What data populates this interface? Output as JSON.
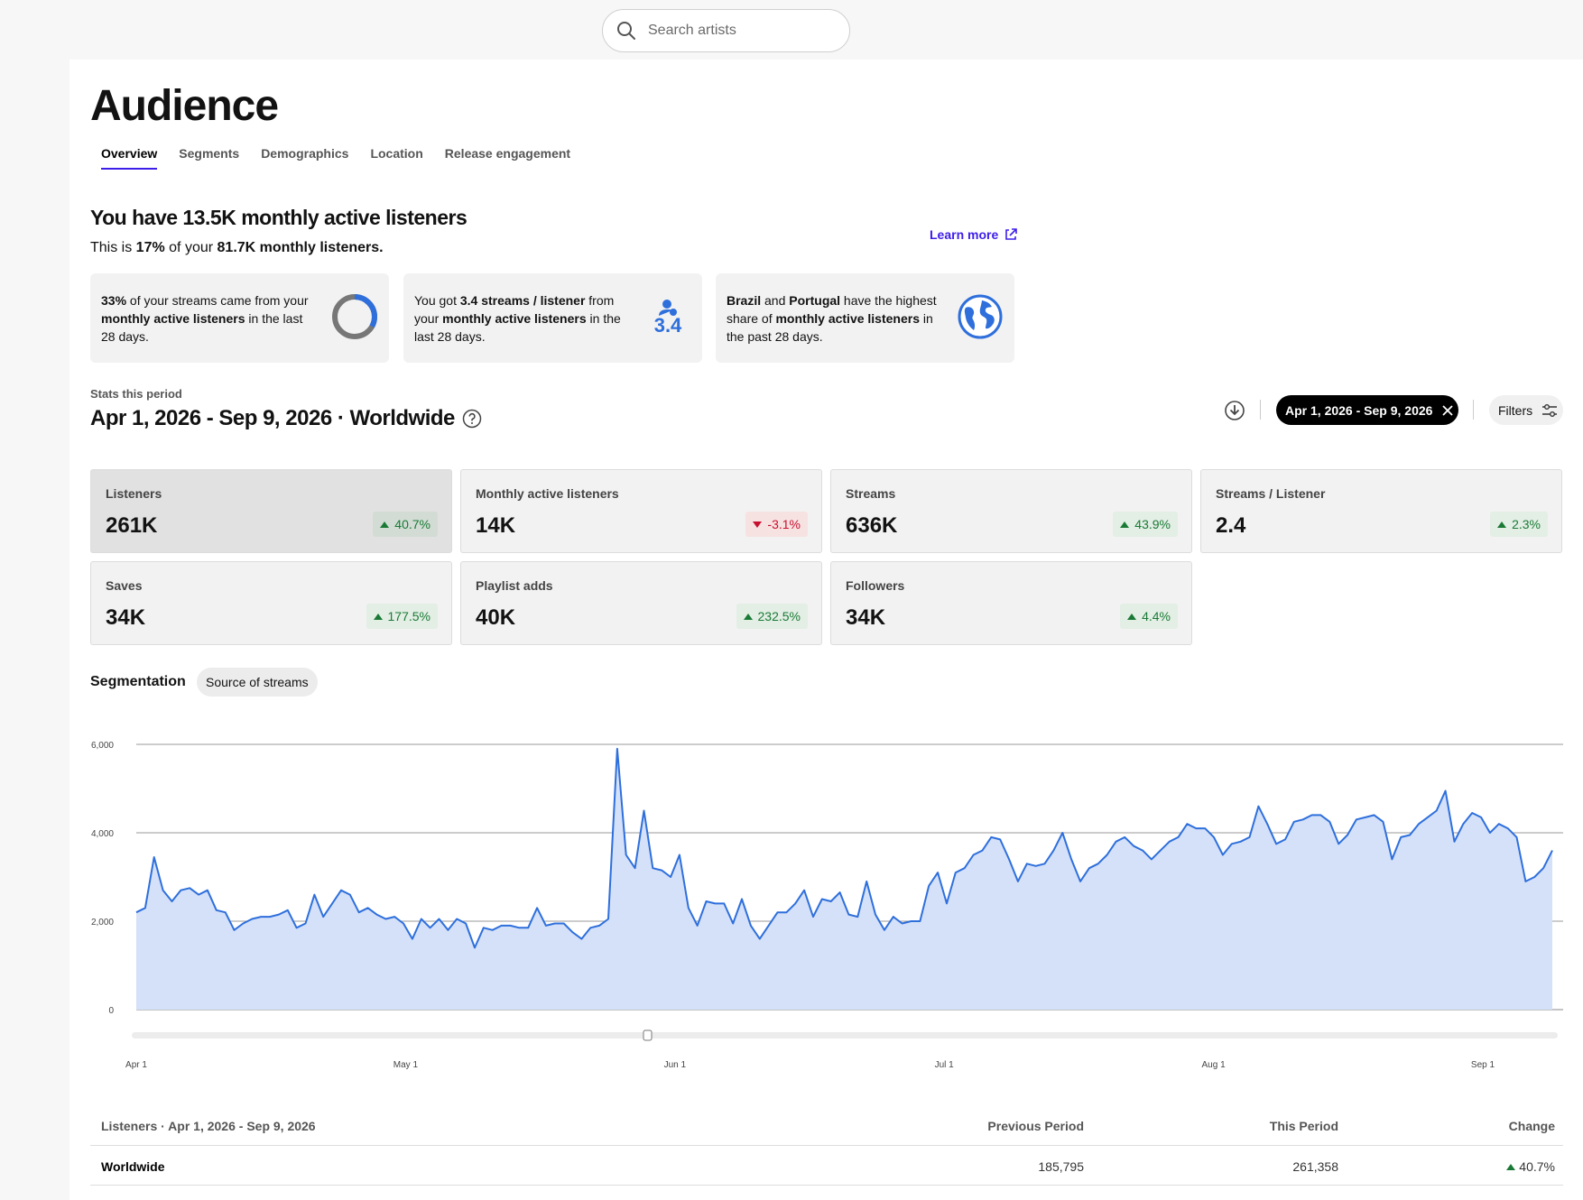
{
  "search": {
    "placeholder": "Search artists",
    "icon": "search-icon"
  },
  "page": {
    "title": "Audience"
  },
  "tabs": [
    {
      "label": "Overview",
      "active": true
    },
    {
      "label": "Segments"
    },
    {
      "label": "Demographics"
    },
    {
      "label": "Location"
    },
    {
      "label": "Release engagement"
    }
  ],
  "summary": {
    "headline": "You have 13.5K monthly active listeners",
    "sub_prefix": "This is ",
    "sub_pct": "17%",
    "sub_mid": " of your ",
    "sub_total": "81.7K monthly listeners.",
    "learn_more": "Learn more"
  },
  "insights": [
    {
      "b1": "33%",
      "t1": " of your streams came from your ",
      "b2": "monthly active listeners",
      "t2": " in the last 28 days.",
      "icon": "donut-chart-icon",
      "donut_pct": 33
    },
    {
      "t0": "You got ",
      "b1": "3.4 streams / listener",
      "t1": " from your ",
      "b2": "monthly active listeners",
      "t2": " in the last 28 days.",
      "icon": "listener-icon",
      "value": "3.4"
    },
    {
      "b1": "Brazil",
      "t1": " and ",
      "b2": "Portugal",
      "t2": " have the highest share of ",
      "b3": "monthly active listeners",
      "t3": " in the past 28 days.",
      "icon": "globe-icon"
    }
  ],
  "period": {
    "label": "Stats this period",
    "title": "Apr 1, 2026 - Sep 9, 2026 · Worldwide",
    "date_chip": "Apr 1, 2026 - Sep 9, 2026",
    "filters": "Filters"
  },
  "metrics": [
    {
      "label": "Listeners",
      "value": "261K",
      "change": "40.7%",
      "dir": "up",
      "selected": true
    },
    {
      "label": "Monthly active listeners",
      "value": "14K",
      "change": "-3.1%",
      "dir": "down"
    },
    {
      "label": "Streams",
      "value": "636K",
      "change": "43.9%",
      "dir": "up"
    },
    {
      "label": "Streams / Listener",
      "value": "2.4",
      "change": "2.3%",
      "dir": "up"
    },
    {
      "label": "Saves",
      "value": "34K",
      "change": "177.5%",
      "dir": "up"
    },
    {
      "label": "Playlist adds",
      "value": "40K",
      "change": "232.5%",
      "dir": "up"
    },
    {
      "label": "Followers",
      "value": "34K",
      "change": "4.4%",
      "dir": "up"
    }
  ],
  "segmentation": {
    "label": "Segmentation",
    "chip": "Source of streams"
  },
  "colors": {
    "accent": "#3d1ee8",
    "line": "#2e6fdc",
    "fill": "#d5e1f8",
    "up": "#1a7a35",
    "down": "#c8102e"
  },
  "chart_data": {
    "type": "area",
    "series": [
      {
        "values": [
          2200,
          2300,
          3450,
          2700,
          2450,
          2700,
          2750,
          2600,
          2700,
          2250,
          2200,
          1800,
          1950,
          2050,
          2100,
          2100,
          2150,
          2250,
          1850,
          1950,
          2600,
          2100,
          2400,
          2700,
          2600,
          2200,
          2300,
          2150,
          2050,
          2100,
          1950,
          1600,
          2050,
          1850,
          2050,
          1800,
          2050,
          1950,
          1400,
          1850,
          1800,
          1900,
          1900,
          1850,
          1850,
          2300,
          1900,
          1950,
          1950,
          1750,
          1600,
          1850,
          1900,
          2050,
          5900,
          3500,
          3200,
          4500,
          3200,
          3150,
          3000,
          3500,
          2300,
          1900,
          2450,
          2400,
          2400,
          1950,
          2500,
          1900,
          1600,
          1900,
          2200,
          2200,
          2400,
          2700,
          2100,
          2500,
          2450,
          2650,
          2150,
          2100,
          2900,
          2150,
          1800,
          2100,
          1950,
          2000,
          2000,
          2800,
          3100,
          2400,
          3100,
          3200,
          3500,
          3600,
          3900,
          3850,
          3400,
          2900,
          3300,
          3250,
          3300,
          3600,
          4000,
          3400,
          2900,
          3200,
          3300,
          3500,
          3800,
          3900,
          3700,
          3600,
          3400,
          3600,
          3800,
          3900,
          4200,
          4100,
          4100,
          3900,
          3500,
          3750,
          3800,
          3900,
          4600,
          4200,
          3750,
          3850,
          4250,
          4300,
          4400,
          4400,
          4250,
          3750,
          3950,
          4300,
          4350,
          4400,
          4250,
          3400,
          3900,
          3950,
          4200,
          4350,
          4500,
          4950,
          3800,
          4200,
          4450,
          4350,
          4000,
          4200,
          4100,
          3900,
          2900,
          3000,
          3200,
          3600
        ],
        "ylim": [
          0,
          6000
        ]
      }
    ],
    "y_ticks": [
      "0",
      "2,000",
      "4,000",
      "6,000"
    ],
    "x_ticks": [
      "Apr 1",
      "May 1",
      "Jun 1",
      "Jul 1",
      "Aug 1",
      "Sep 1"
    ],
    "grid": true
  },
  "table": {
    "headers": [
      "Listeners · Apr 1, 2026 - Sep 9, 2026",
      "Previous Period",
      "This Period",
      "Change"
    ],
    "rows": [
      {
        "name": "Worldwide",
        "previous": "185,795",
        "current": "261,358",
        "change": "40.7%"
      }
    ]
  }
}
